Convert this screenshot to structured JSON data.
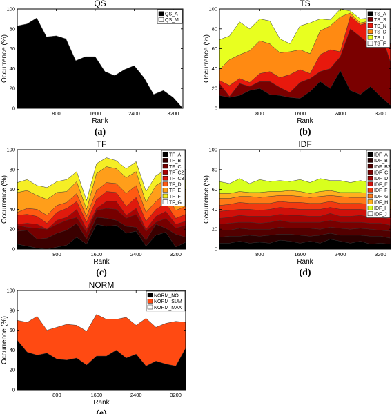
{
  "chart_data": [
    {
      "type": "area",
      "title": "QS",
      "xlabel": "Rank",
      "ylabel": "Occurrence (%)",
      "panel_label": "(a)",
      "xlim": [
        0,
        3400
      ],
      "ylim": [
        0,
        100
      ],
      "xticks": [
        800,
        1600,
        2400,
        3200
      ],
      "yticks": [
        0,
        20,
        40,
        60,
        80,
        100
      ],
      "legend_position": "top-right",
      "x": [
        0,
        200,
        400,
        600,
        800,
        1000,
        1200,
        1400,
        1600,
        1800,
        2000,
        2200,
        2400,
        2600,
        2800,
        3000,
        3200,
        3400
      ],
      "series": [
        {
          "name": "QS_A",
          "color": "#000000",
          "values": [
            83,
            85,
            91,
            72,
            73,
            70,
            48,
            52,
            52,
            37,
            33,
            39,
            43,
            31,
            14,
            18,
            11,
            0
          ]
        },
        {
          "name": "QS_M",
          "color": "#ffffff",
          "values": [
            17,
            15,
            9,
            28,
            27,
            30,
            52,
            48,
            48,
            63,
            67,
            61,
            57,
            69,
            86,
            82,
            89,
            100
          ]
        }
      ]
    },
    {
      "type": "area",
      "title": "TS",
      "xlabel": "Rank",
      "ylabel": "Occurrence (%)",
      "panel_label": "(b)",
      "xlim": [
        0,
        3400
      ],
      "ylim": [
        0,
        100
      ],
      "xticks": [
        800,
        1600,
        2400,
        3200
      ],
      "yticks": [
        0,
        20,
        40,
        60,
        80,
        100
      ],
      "legend_position": "top-right",
      "x": [
        0,
        200,
        400,
        600,
        800,
        1000,
        1200,
        1400,
        1600,
        1800,
        2000,
        2200,
        2400,
        2600,
        2800,
        3000,
        3200,
        3400
      ],
      "series": [
        {
          "name": "TS_A",
          "color": "#000000",
          "values": [
            13,
            11,
            13,
            18,
            20,
            14,
            13,
            11,
            10,
            17,
            27,
            20,
            38,
            18,
            14,
            22,
            12,
            3
          ]
        },
        {
          "name": "TS_S",
          "color": "#7a0000",
          "values": [
            12,
            1,
            12,
            4,
            7,
            13,
            8,
            5,
            16,
            13,
            10,
            20,
            14,
            62,
            58,
            42,
            65,
            43
          ]
        },
        {
          "name": "TS_N",
          "color": "#e8190d",
          "values": [
            3,
            11,
            5,
            4,
            8,
            10,
            10,
            18,
            13,
            5,
            17,
            19,
            5,
            13,
            12,
            23,
            6,
            18
          ]
        },
        {
          "name": "TS_D",
          "color": "#ff8a12",
          "values": [
            11,
            26,
            24,
            32,
            33,
            28,
            25,
            23,
            20,
            20,
            24,
            24,
            35,
            3,
            2,
            1,
            1,
            0
          ]
        },
        {
          "name": "TS_L",
          "color": "#e8ff20",
          "values": [
            30,
            24,
            33,
            22,
            22,
            23,
            14,
            8,
            24,
            31,
            12,
            6,
            8,
            2,
            4,
            3,
            5,
            0
          ]
        },
        {
          "name": "TS_F",
          "color": "#ffffff",
          "values": [
            31,
            27,
            13,
            20,
            10,
            12,
            30,
            35,
            17,
            14,
            10,
            11,
            0,
            2,
            10,
            9,
            11,
            36
          ]
        }
      ]
    },
    {
      "type": "area",
      "title": "TF",
      "xlabel": "Rank",
      "ylabel": "Occurrence (%)",
      "panel_label": "(c)",
      "xlim": [
        0,
        3400
      ],
      "ylim": [
        0,
        100
      ],
      "xticks": [
        800,
        1600,
        2400,
        3200
      ],
      "yticks": [
        0,
        20,
        40,
        60,
        80,
        100
      ],
      "legend_position": "top-right",
      "x": [
        0,
        200,
        400,
        600,
        800,
        1000,
        1200,
        1400,
        1600,
        1800,
        2000,
        2200,
        2400,
        2600,
        2800,
        3000,
        3200,
        3400
      ],
      "series": [
        {
          "name": "TF_A",
          "color": "#000000",
          "values": [
            5,
            3,
            1,
            0,
            2,
            4,
            12,
            5,
            25,
            23,
            24,
            16,
            18,
            3,
            14,
            17,
            2,
            7
          ]
        },
        {
          "name": "TF_B",
          "color": "#3a0000",
          "values": [
            13,
            16,
            9,
            11,
            14,
            15,
            14,
            5,
            7,
            8,
            5,
            7,
            4,
            6,
            11,
            4,
            13,
            5
          ]
        },
        {
          "name": "TF_C",
          "color": "#760000",
          "values": [
            6,
            3,
            11,
            9,
            9,
            10,
            6,
            7,
            7,
            10,
            11,
            8,
            13,
            9,
            2,
            10,
            6,
            12
          ]
        },
        {
          "name": "TF_C2",
          "color": "#a80303",
          "values": [
            1,
            4,
            4,
            0,
            4,
            3,
            8,
            3,
            2,
            7,
            8,
            3,
            6,
            2,
            6,
            7,
            4,
            4
          ]
        },
        {
          "name": "TF_C3",
          "color": "#e01a0d",
          "values": [
            9,
            9,
            8,
            6,
            8,
            9,
            8,
            7,
            9,
            10,
            9,
            9,
            11,
            8,
            7,
            8,
            6,
            7
          ]
        },
        {
          "name": "TF_D",
          "color": "#ff5a12",
          "values": [
            3,
            6,
            7,
            8,
            7,
            6,
            8,
            6,
            9,
            9,
            9,
            13,
            12,
            9,
            8,
            10,
            8,
            8
          ]
        },
        {
          "name": "TF_E",
          "color": "#ff9e1a",
          "values": [
            20,
            18,
            14,
            16,
            13,
            11,
            12,
            7,
            17,
            16,
            15,
            16,
            14,
            10,
            16,
            14,
            16,
            17
          ]
        },
        {
          "name": "TF_F",
          "color": "#f5ee25",
          "values": [
            10,
            11,
            10,
            12,
            11,
            12,
            10,
            9,
            10,
            9,
            8,
            9,
            10,
            11,
            10,
            10,
            9,
            10
          ]
        },
        {
          "name": "TF_G",
          "color": "#ffffff",
          "values": [
            33,
            30,
            36,
            38,
            32,
            30,
            22,
            51,
            14,
            8,
            11,
            19,
            12,
            42,
            26,
            20,
            36,
            30
          ]
        }
      ]
    },
    {
      "type": "area",
      "title": "IDF",
      "xlabel": "Rank",
      "ylabel": "Occurrence (%)",
      "panel_label": "(d)",
      "xlim": [
        0,
        3400
      ],
      "ylim": [
        0,
        100
      ],
      "xticks": [
        800,
        1600,
        2400,
        3200
      ],
      "yticks": [
        0,
        20,
        40,
        60,
        80,
        100
      ],
      "legend_position": "top-right",
      "x": [
        0,
        200,
        400,
        600,
        800,
        1000,
        1200,
        1400,
        1600,
        1800,
        2000,
        2200,
        2400,
        2600,
        2800,
        3000,
        3200,
        3400
      ],
      "series": [
        {
          "name": "IDF_A",
          "color": "#000000",
          "values": [
            6,
            6,
            8,
            6,
            7,
            6,
            9,
            8,
            6,
            8,
            6,
            10,
            8,
            6,
            8,
            5,
            6,
            5
          ]
        },
        {
          "name": "IDF_B",
          "color": "#2a0000",
          "values": [
            6,
            7,
            5,
            8,
            6,
            8,
            6,
            7,
            8,
            5,
            8,
            6,
            6,
            8,
            6,
            8,
            7,
            6
          ]
        },
        {
          "name": "IDF_B2",
          "color": "#520000",
          "values": [
            7,
            6,
            8,
            6,
            7,
            6,
            7,
            6,
            7,
            8,
            6,
            6,
            7,
            6,
            7,
            7,
            6,
            7
          ]
        },
        {
          "name": "IDF_C",
          "color": "#780000",
          "values": [
            6,
            7,
            6,
            7,
            6,
            7,
            7,
            6,
            6,
            6,
            7,
            7,
            6,
            7,
            6,
            6,
            7,
            6
          ]
        },
        {
          "name": "IDF_D",
          "color": "#a50303",
          "values": [
            6,
            6,
            7,
            6,
            7,
            6,
            6,
            7,
            7,
            6,
            6,
            7,
            6,
            6,
            7,
            6,
            6,
            6
          ]
        },
        {
          "name": "IDF_E",
          "color": "#d0100a",
          "values": [
            7,
            7,
            6,
            7,
            6,
            7,
            7,
            7,
            6,
            7,
            7,
            6,
            7,
            7,
            6,
            7,
            7,
            5
          ]
        },
        {
          "name": "IDF_F",
          "color": "#f23a10",
          "values": [
            6,
            6,
            7,
            6,
            7,
            6,
            6,
            6,
            7,
            6,
            6,
            6,
            6,
            6,
            6,
            6,
            5,
            5
          ]
        },
        {
          "name": "IDF_G",
          "color": "#ff7a16",
          "values": [
            7,
            6,
            6,
            7,
            6,
            7,
            6,
            7,
            6,
            6,
            7,
            6,
            7,
            6,
            6,
            7,
            6,
            5
          ]
        },
        {
          "name": "IDF_H",
          "color": "#ffb01e",
          "values": [
            5,
            5,
            5,
            4,
            5,
            5,
            4,
            5,
            5,
            4,
            5,
            5,
            4,
            5,
            5,
            4,
            5,
            4
          ]
        },
        {
          "name": "IDF_I",
          "color": "#d8ff1e",
          "values": [
            12,
            10,
            13,
            9,
            13,
            10,
            11,
            9,
            12,
            11,
            13,
            10,
            12,
            10,
            12,
            11,
            9,
            10
          ]
        },
        {
          "name": "IDF_J",
          "color": "#ffffff",
          "values": [
            32,
            34,
            29,
            34,
            30,
            32,
            31,
            32,
            30,
            33,
            29,
            31,
            31,
            33,
            31,
            33,
            36,
            41
          ]
        }
      ]
    },
    {
      "type": "area",
      "title": "NORM",
      "xlabel": "Rank",
      "ylabel": "Occurrence (%)",
      "panel_label": "(e)",
      "xlim": [
        0,
        3400
      ],
      "ylim": [
        0,
        100
      ],
      "xticks": [
        800,
        1600,
        2400,
        3200
      ],
      "yticks": [
        0,
        20,
        40,
        60,
        80,
        100
      ],
      "legend_position": "top-right",
      "x": [
        0,
        200,
        400,
        600,
        800,
        1000,
        1200,
        1400,
        1600,
        1800,
        2000,
        2200,
        2400,
        2600,
        2800,
        3000,
        3200,
        3400
      ],
      "series": [
        {
          "name": "NORM_NO",
          "color": "#000000",
          "values": [
            50,
            38,
            35,
            37,
            31,
            30,
            32,
            25,
            34,
            34,
            40,
            32,
            36,
            24,
            29,
            26,
            24,
            42
          ]
        },
        {
          "name": "NORM_SUM",
          "color": "#ff4a12",
          "values": [
            20,
            30,
            39,
            23,
            32,
            36,
            33,
            34,
            42,
            37,
            31,
            41,
            29,
            48,
            34,
            41,
            45,
            26
          ]
        },
        {
          "name": "NORM_MAX",
          "color": "#ffffff",
          "values": [
            30,
            32,
            26,
            40,
            37,
            34,
            35,
            41,
            24,
            29,
            29,
            27,
            35,
            28,
            37,
            33,
            31,
            32
          ]
        }
      ]
    }
  ]
}
